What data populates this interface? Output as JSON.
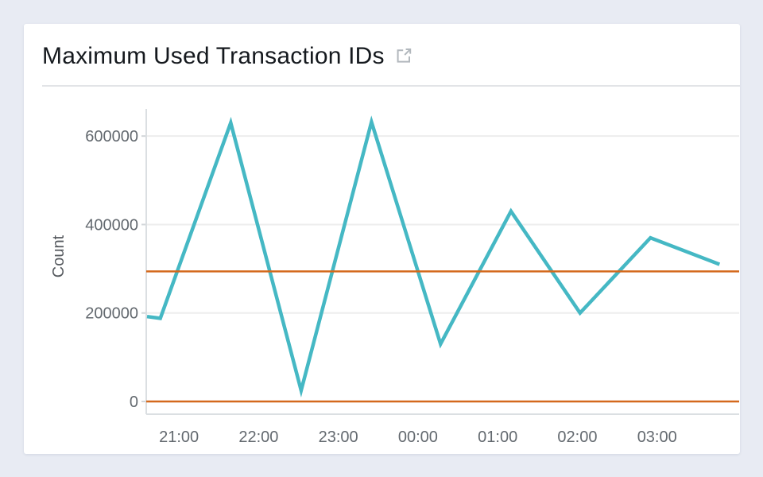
{
  "page": {
    "background_color": "#e8ebf3"
  },
  "card": {
    "title": "Maximum Used Transaction IDs",
    "title_icon": "external-link-icon",
    "background_color": "#ffffff"
  },
  "chart_data": {
    "type": "line",
    "title": "Maximum Used Transaction IDs",
    "xlabel": "",
    "ylabel": "Count",
    "x_tick_labels": [
      "21:00",
      "22:00",
      "23:00",
      "00:00",
      "01:00",
      "02:00",
      "03:00"
    ],
    "y_ticks": [
      0,
      200000,
      400000,
      600000
    ],
    "y_tick_labels": [
      "0",
      "200000",
      "400000",
      "600000"
    ],
    "xlim_hours_after_2000": [
      0.59,
      8.03
    ],
    "ylim": [
      0,
      656000
    ],
    "grid": "horizontal-only",
    "legend": "none",
    "series": [
      {
        "name": "Maximum Used Transaction IDs",
        "color": "#45b8c4",
        "points": [
          {
            "time": "20:36",
            "value": 192000
          },
          {
            "time": "20:46",
            "value": 188000
          },
          {
            "time": "21:39",
            "value": 630000
          },
          {
            "time": "22:32",
            "value": 25000
          },
          {
            "time": "23:25",
            "value": 632000
          },
          {
            "time": "00:17",
            "value": 130000
          },
          {
            "time": "01:10",
            "value": 430000
          },
          {
            "time": "02:02",
            "value": 200000
          },
          {
            "time": "02:55",
            "value": 370000
          },
          {
            "time": "03:47",
            "value": 310000
          }
        ]
      }
    ],
    "threshold_lines": [
      {
        "value": 294000,
        "color": "#d4691d"
      },
      {
        "value": 0,
        "color": "#d4691d"
      }
    ],
    "palette": {
      "grid_color": "#ededed",
      "axis_line_color": "#dbdfe2",
      "tick_mark_color": "#d2d6d9",
      "tick_text_color": "#63696f",
      "icon_color": "#b2b8bd"
    }
  }
}
